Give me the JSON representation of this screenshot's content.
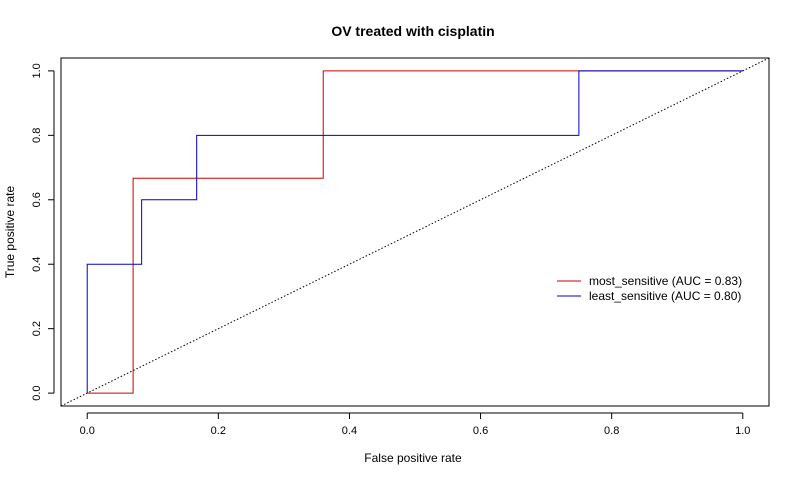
{
  "chart_data": {
    "type": "line",
    "title": "OV treated with cisplatin",
    "xlabel": "False positive rate",
    "ylabel": "True positive rate",
    "xlim": [
      -0.04,
      1.04
    ],
    "ylim": [
      -0.04,
      1.04
    ],
    "xticks": [
      "0.0",
      "0.2",
      "0.4",
      "0.6",
      "0.8",
      "1.0"
    ],
    "yticks": [
      "0.0",
      "0.2",
      "0.4",
      "0.6",
      "0.8",
      "1.0"
    ],
    "grid": false,
    "legend_position": "right",
    "series": [
      {
        "name": "most_sensitive (AUC = 0.83)",
        "color": "#cc0000",
        "style": "step",
        "x": [
          0.0,
          0.07,
          0.07,
          0.36,
          0.36,
          1.0
        ],
        "y": [
          0.0,
          0.0,
          0.667,
          0.667,
          1.0,
          1.0
        ]
      },
      {
        "name": "least_sensitive (AUC = 0.80)",
        "color": "#0000cc",
        "style": "step",
        "x": [
          0.0,
          0.0,
          0.083,
          0.083,
          0.167,
          0.167,
          0.75,
          0.75,
          1.0
        ],
        "y": [
          0.0,
          0.4,
          0.4,
          0.6,
          0.6,
          0.8,
          0.8,
          1.0,
          1.0
        ]
      }
    ],
    "reference_line": {
      "style": "dotted",
      "color": "#000000",
      "x": [
        -0.04,
        1.04
      ],
      "y": [
        -0.04,
        1.04
      ]
    }
  }
}
